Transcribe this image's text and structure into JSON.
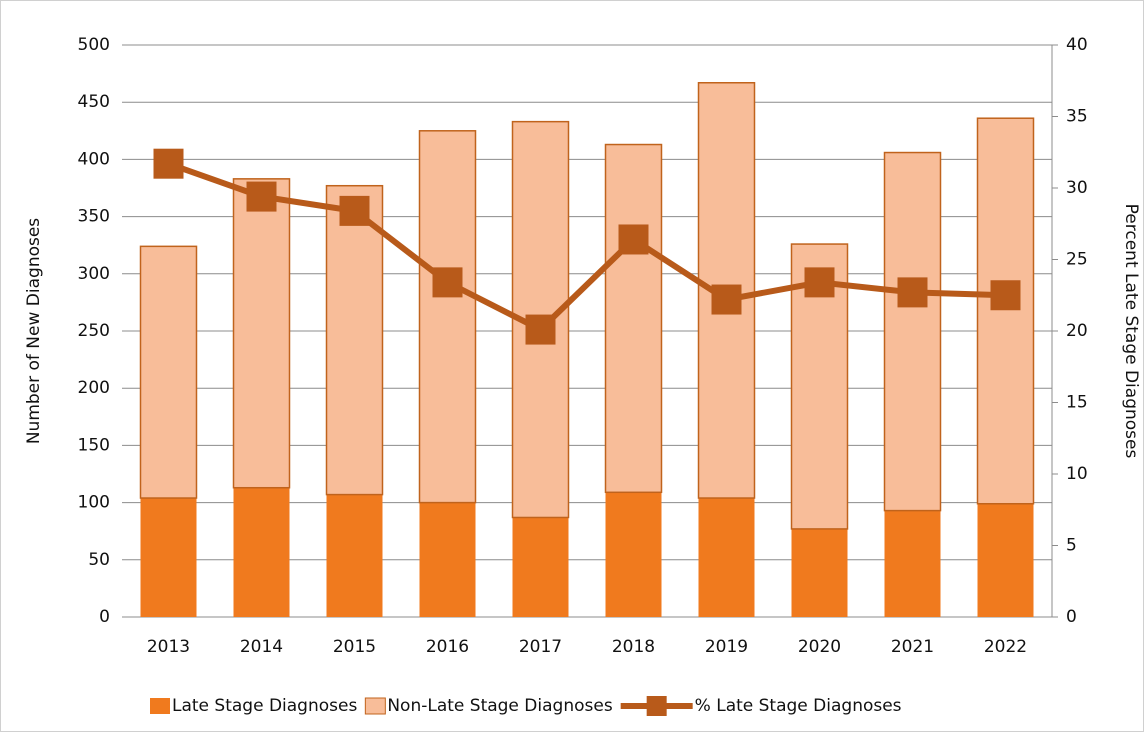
{
  "chart_data": {
    "type": "bar",
    "categories": [
      "2013",
      "2014",
      "2015",
      "2016",
      "2017",
      "2018",
      "2019",
      "2020",
      "2021",
      "2022"
    ],
    "series": [
      {
        "name": "Late Stage Diagnoses",
        "color": "#f07a1e",
        "values": [
          104,
          113,
          107,
          100,
          87,
          109,
          104,
          77,
          93,
          99
        ]
      },
      {
        "name": "Non-Late Stage Diagnoses",
        "color": "#f8bd99",
        "values": [
          220,
          270,
          270,
          325,
          346,
          304,
          363,
          249,
          313,
          337
        ]
      },
      {
        "name": "% Late Stage Diagnoses",
        "color": "#b85a1a",
        "type": "line",
        "axis": "y2",
        "values": [
          31.7,
          29.4,
          28.4,
          23.4,
          20.1,
          26.4,
          22.2,
          23.4,
          22.7,
          22.5
        ]
      }
    ],
    "ylabel": "Number of New Diagnoses",
    "y2label": "Percent Late Stage Diagnoses",
    "ylim": [
      0,
      500
    ],
    "yticks": [
      0,
      50,
      100,
      150,
      200,
      250,
      300,
      350,
      400,
      450,
      500
    ],
    "y2lim": [
      0,
      40
    ],
    "y2ticks": [
      0,
      5,
      10,
      15,
      20,
      25,
      30,
      35,
      40
    ],
    "stacked": true,
    "grid": true,
    "legend": "bottom"
  }
}
